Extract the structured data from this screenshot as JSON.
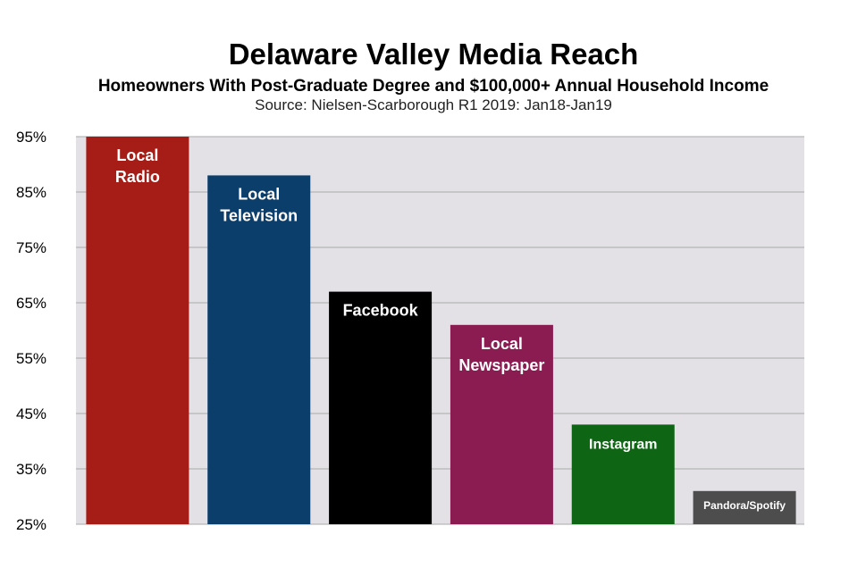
{
  "header": {
    "title": "Delaware Valley Media Reach",
    "subtitle": "Homeowners With Post-Graduate Degree and $100,000+ Annual Household Income",
    "source": "Source: Nielsen-Scarborough R1 2019: Jan18-Jan19"
  },
  "chart_data": {
    "type": "bar",
    "title": "Delaware Valley Media Reach",
    "subtitle": "Homeowners With Post-Graduate Degree and $100,000+ Annual Household Income",
    "xlabel": "",
    "ylabel": "",
    "ylim": [
      25,
      95
    ],
    "yticks": [
      "95%",
      "85%",
      "75%",
      "65%",
      "55%",
      "45%",
      "35%",
      "25%"
    ],
    "ytick_values": [
      95,
      85,
      75,
      65,
      55,
      45,
      35,
      25
    ],
    "grid": true,
    "categories": [
      [
        "Local",
        "Radio"
      ],
      [
        "Local",
        "Television"
      ],
      [
        "Facebook"
      ],
      [
        "Local",
        "Newspaper"
      ],
      [
        "Instagram"
      ],
      [
        "Pandora/Spotify"
      ]
    ],
    "values": [
      95,
      88,
      67,
      61,
      43,
      31
    ],
    "colors": [
      "#a61c16",
      "#0c3e6b",
      "#000000",
      "#8b1c52",
      "#0e6614",
      "#4d4d4d"
    ],
    "plot_background": "#e3e1e6",
    "gridline_color": "#a9a9a9"
  }
}
